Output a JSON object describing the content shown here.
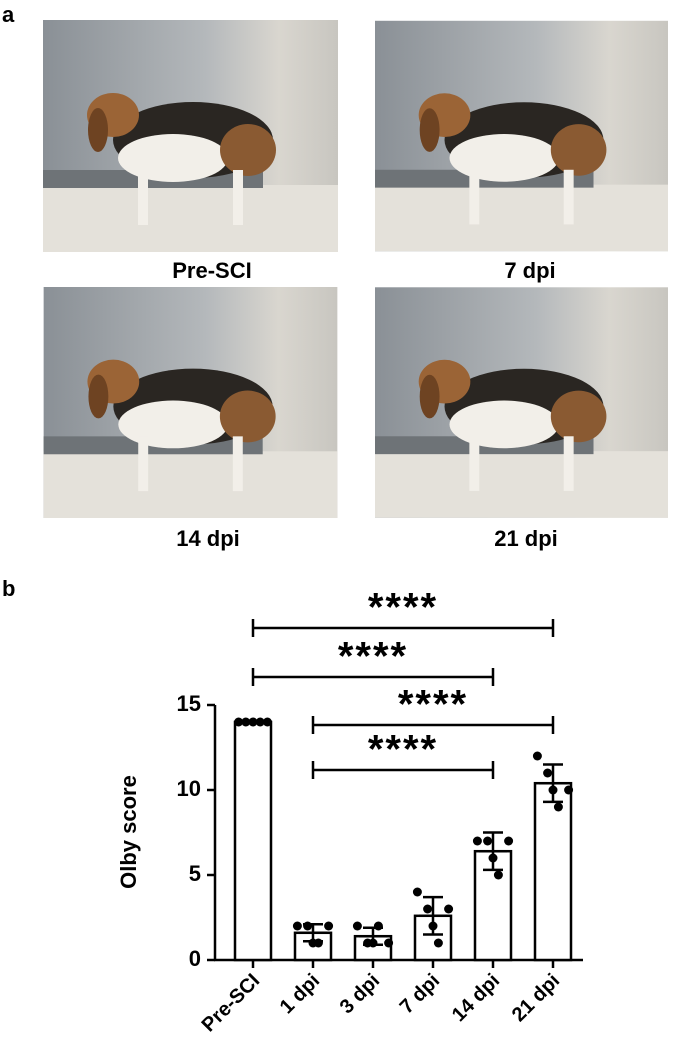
{
  "panel_a": {
    "label": "a",
    "captions": [
      "Pre-SCI",
      "7 dpi",
      "14 dpi",
      "21 dpi"
    ]
  },
  "chart_data": {
    "type": "bar",
    "panel_label": "b",
    "y_label": "Olby score",
    "categories": [
      "Pre-SCI",
      "1 dpi",
      "3 dpi",
      "7 dpi",
      "14 dpi",
      "21 dpi"
    ],
    "values": [
      14,
      1.6,
      1.4,
      2.6,
      6.4,
      10.4
    ],
    "errors": [
      0,
      0.5,
      0.5,
      1.1,
      1.1,
      1.1
    ],
    "points": [
      [
        14,
        14,
        14,
        14,
        14
      ],
      [
        2,
        2,
        1,
        1,
        2
      ],
      [
        2,
        1,
        1,
        2,
        1
      ],
      [
        4,
        3,
        2,
        1,
        3
      ],
      [
        7,
        7,
        6,
        5,
        7
      ],
      [
        12,
        11,
        10,
        9,
        10
      ]
    ],
    "color": "#ffffff",
    "ylim": [
      0,
      15
    ],
    "yticks": [
      0,
      5,
      10,
      15
    ],
    "comparisons": [
      {
        "between": [
          "Pre-SCI",
          "21 dpi"
        ],
        "label": "****"
      },
      {
        "between": [
          "Pre-SCI",
          "14 dpi"
        ],
        "label": "****"
      },
      {
        "between": [
          "1 dpi",
          "21 dpi"
        ],
        "label": "****"
      },
      {
        "between": [
          "1 dpi",
          "14 dpi"
        ],
        "label": "****"
      }
    ]
  }
}
